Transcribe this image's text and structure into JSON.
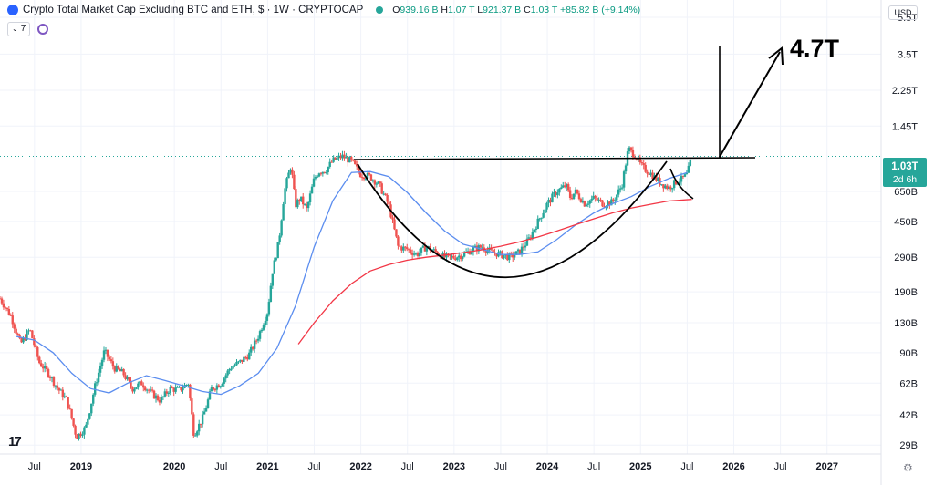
{
  "header": {
    "title": "Crypto Total Market Cap Excluding BTC and ETH, $ · 1W · CRYPTOCAP",
    "ohlc": {
      "open_label": "O",
      "open": "939.16 B",
      "high_label": "H",
      "high": "1.07 T",
      "low_label": "L",
      "low": "921.37 B",
      "close_label": "C",
      "close": "1.03 T",
      "change": "+85.82 B (+9.14%)"
    },
    "indicator_count": "7",
    "currency": "USD"
  },
  "colors": {
    "up": "#26a69a",
    "down": "#ef5350",
    "ma_short": "#5b8def",
    "ma_long": "#f23645",
    "drawing": "#000000",
    "price_line": "#26a69a"
  },
  "price_label": {
    "value": "1.03T",
    "countdown": "2d 6h"
  },
  "annotation": {
    "target": "4.7T"
  },
  "chart_data": {
    "type": "line",
    "title": "Crypto Total Market Cap Excluding BTC and ETH, $ · 1W · CRYPTOCAP",
    "y_scale": "log",
    "y_unit": "USD",
    "y_ticks": [
      "5.5T",
      "3.5T",
      "2.25T",
      "1.45T",
      "1.03T",
      "650B",
      "450B",
      "290B",
      "190B",
      "130B",
      "90B",
      "62B",
      "42B",
      "29B"
    ],
    "y_tick_values": [
      5500,
      3500,
      2250,
      1450,
      1030,
      650,
      450,
      290,
      190,
      130,
      90,
      62,
      42,
      29
    ],
    "x_ticks": [
      "Jul",
      "2019",
      "2020",
      "Jul",
      "2021",
      "Jul",
      "2022",
      "Jul",
      "2023",
      "Jul",
      "2024",
      "Jul",
      "2025",
      "Jul",
      "2026",
      "Jul",
      "2027"
    ],
    "x_tick_dates": [
      2018.5,
      2019.0,
      2020.0,
      2020.5,
      2021.0,
      2021.5,
      2022.0,
      2022.5,
      2023.0,
      2023.5,
      2024.0,
      2024.5,
      2025.0,
      2025.5,
      2026.0,
      2026.5,
      2027.0
    ],
    "x_range": [
      2018.13,
      2027.58
    ],
    "y_range_billions": [
      26,
      6800
    ],
    "series": [
      {
        "name": "Close",
        "values_unit": "billions USD",
        "x": [
          2018.13,
          2018.25,
          2018.35,
          2018.45,
          2018.55,
          2018.65,
          2018.75,
          2018.85,
          2018.95,
          2019.05,
          2019.15,
          2019.25,
          2019.35,
          2019.45,
          2019.55,
          2019.65,
          2019.75,
          2019.85,
          2019.95,
          2020.05,
          2020.15,
          2020.21,
          2020.3,
          2020.4,
          2020.5,
          2020.6,
          2020.7,
          2020.8,
          2020.9,
          2021.0,
          2021.05,
          2021.12,
          2021.18,
          2021.25,
          2021.3,
          2021.35,
          2021.42,
          2021.5,
          2021.55,
          2021.62,
          2021.7,
          2021.8,
          2021.9,
          2022.0,
          2022.1,
          2022.2,
          2022.3,
          2022.4,
          2022.5,
          2022.6,
          2022.7,
          2022.8,
          2022.9,
          2023.0,
          2023.1,
          2023.2,
          2023.3,
          2023.4,
          2023.5,
          2023.6,
          2023.7,
          2023.8,
          2023.9,
          2024.0,
          2024.1,
          2024.2,
          2024.25,
          2024.3,
          2024.4,
          2024.5,
          2024.6,
          2024.7,
          2024.8,
          2024.87,
          2024.95,
          2025.0,
          2025.05,
          2025.1,
          2025.2,
          2025.3,
          2025.38,
          2025.45,
          2025.5,
          2025.55
        ],
        "values": [
          175,
          140,
          100,
          120,
          80,
          70,
          58,
          50,
          32,
          36,
          60,
          92,
          75,
          70,
          58,
          62,
          55,
          50,
          58,
          57,
          62,
          33,
          40,
          58,
          62,
          75,
          80,
          88,
          110,
          150,
          240,
          350,
          650,
          900,
          550,
          600,
          520,
          760,
          830,
          840,
          950,
          1000,
          940,
          800,
          780,
          700,
          550,
          330,
          320,
          300,
          330,
          310,
          290,
          290,
          300,
          320,
          330,
          310,
          300,
          290,
          310,
          360,
          450,
          560,
          650,
          700,
          600,
          650,
          560,
          600,
          560,
          570,
          700,
          1100,
          1000,
          900,
          850,
          820,
          730,
          680,
          730,
          760,
          800,
          1000
        ]
      },
      {
        "name": "MA short",
        "values_unit": "billions USD",
        "x": [
          2018.3,
          2018.5,
          2018.7,
          2018.9,
          2019.1,
          2019.3,
          2019.5,
          2019.7,
          2019.9,
          2020.1,
          2020.3,
          2020.5,
          2020.7,
          2020.9,
          2021.1,
          2021.3,
          2021.5,
          2021.7,
          2021.9,
          2022.1,
          2022.3,
          2022.5,
          2022.7,
          2022.9,
          2023.1,
          2023.3,
          2023.5,
          2023.7,
          2023.9,
          2024.1,
          2024.3,
          2024.5,
          2024.7,
          2024.9,
          2025.1,
          2025.3,
          2025.5
        ],
        "values": [
          110,
          105,
          90,
          70,
          58,
          55,
          62,
          68,
          64,
          60,
          56,
          54,
          60,
          70,
          95,
          160,
          330,
          580,
          820,
          830,
          780,
          640,
          500,
          400,
          340,
          320,
          300,
          300,
          310,
          360,
          430,
          500,
          560,
          610,
          690,
          760,
          820
        ]
      },
      {
        "name": "MA long",
        "values_unit": "billions USD",
        "x": [
          2021.33,
          2021.5,
          2021.7,
          2021.9,
          2022.1,
          2022.3,
          2022.5,
          2022.7,
          2022.9,
          2023.1,
          2023.3,
          2023.5,
          2023.7,
          2023.9,
          2024.1,
          2024.3,
          2024.5,
          2024.7,
          2024.9,
          2025.1,
          2025.3,
          2025.55
        ],
        "values": [
          100,
          130,
          170,
          210,
          245,
          265,
          280,
          290,
          298,
          307,
          318,
          332,
          350,
          372,
          400,
          432,
          465,
          500,
          530,
          555,
          578,
          590
        ]
      }
    ]
  }
}
